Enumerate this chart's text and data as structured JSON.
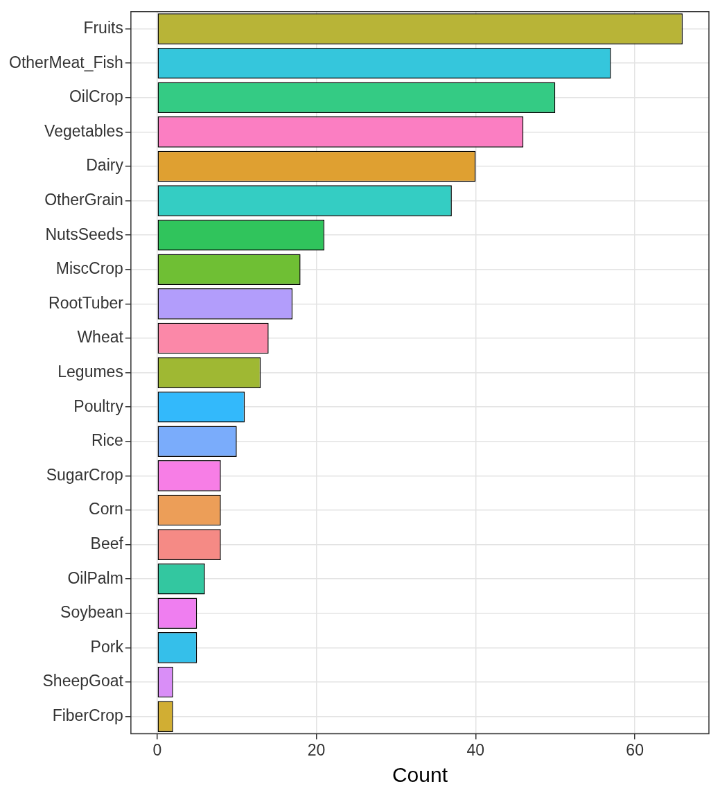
{
  "chart_data": {
    "type": "bar",
    "orientation": "horizontal",
    "xlabel": "Count",
    "categories": [
      "Fruits",
      "OtherMeat_Fish",
      "OilCrop",
      "Vegetables",
      "Dairy",
      "OtherGrain",
      "NutsSeeds",
      "MiscCrop",
      "RootTuber",
      "Wheat",
      "Legumes",
      "Poultry",
      "Rice",
      "SugarCrop",
      "Corn",
      "Beef",
      "OilPalm",
      "Soybean",
      "Pork",
      "SheepGoat",
      "FiberCrop"
    ],
    "values": [
      66,
      57,
      50,
      46,
      40,
      37,
      21,
      18,
      17,
      14,
      13,
      11,
      10,
      8,
      8,
      8,
      6,
      5,
      5,
      2,
      2
    ],
    "colors": [
      "#b8b437",
      "#35c6dc",
      "#34cb84",
      "#fb7ec2",
      "#dfa031",
      "#34cdc3",
      "#30c45c",
      "#6fbf34",
      "#b29dfb",
      "#fb88a8",
      "#9fb833",
      "#33b9fb",
      "#7aacfb",
      "#f77ee6",
      "#ec9e58",
      "#f58a85",
      "#33c7a0",
      "#ef7ef0",
      "#35bfea",
      "#d98ef7",
      "#d1ae33"
    ],
    "xlim": [
      -3.3,
      69.3
    ],
    "xticks": [
      0,
      20,
      40,
      60
    ],
    "grid": true,
    "legend": false
  }
}
